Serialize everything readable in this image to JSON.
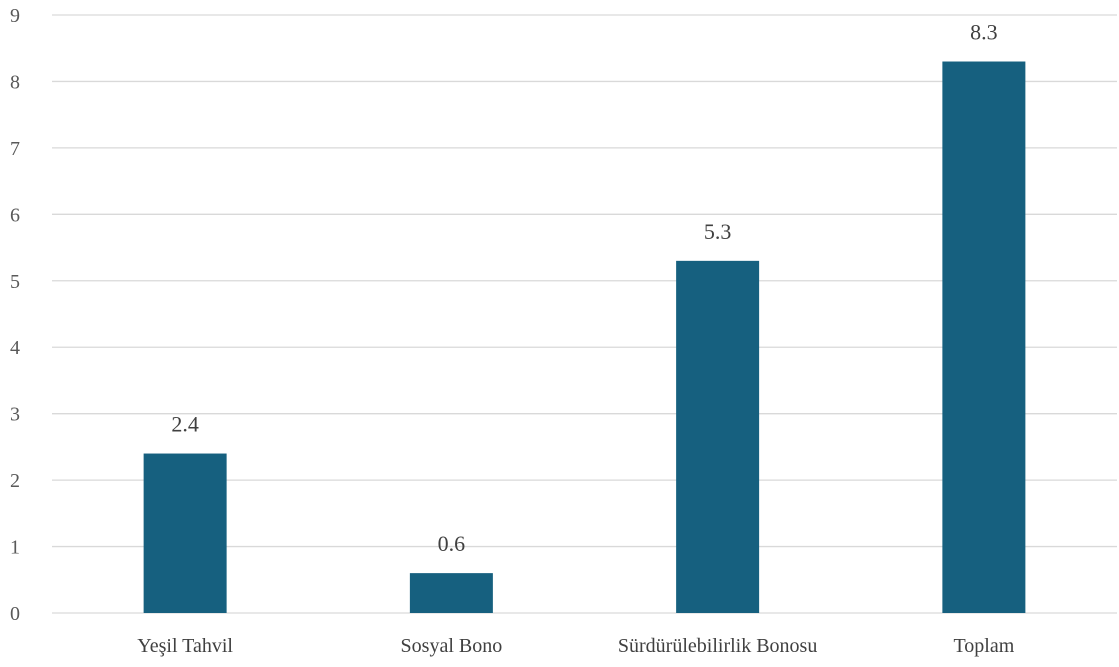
{
  "chart_data": {
    "type": "bar",
    "categories": [
      "Yeşil Tahvil",
      "Sosyal Bono",
      "Sürdürülebilirlik Bonosu",
      "Toplam"
    ],
    "values": [
      2.4,
      0.6,
      5.3,
      8.3
    ],
    "value_labels": [
      "2.4",
      "0.6",
      "5.3",
      "8.3"
    ],
    "yticks": [
      0,
      1,
      2,
      3,
      4,
      5,
      6,
      7,
      8,
      9
    ],
    "ylim": [
      0,
      9
    ],
    "title": "",
    "xlabel": "",
    "ylabel": "",
    "grid": true,
    "legend": "none",
    "bar_color": "#16607f"
  }
}
